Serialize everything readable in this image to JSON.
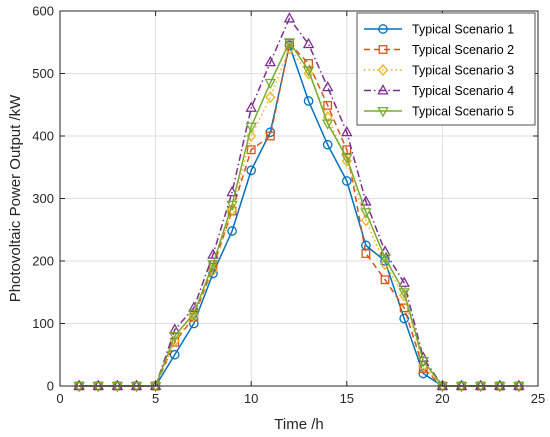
{
  "chart_data": {
    "type": "line",
    "title": "",
    "xlabel": "Time /h",
    "ylabel": "Photovoltaic Power Output /kW",
    "xlim": [
      0,
      25
    ],
    "ylim": [
      0,
      600
    ],
    "xticks": [
      0,
      5,
      10,
      15,
      20,
      25
    ],
    "yticks": [
      0,
      100,
      200,
      300,
      400,
      500,
      600
    ],
    "grid": true,
    "legend_position": "top-right",
    "x": [
      1,
      2,
      3,
      4,
      5,
      6,
      7,
      8,
      9,
      10,
      11,
      12,
      13,
      14,
      15,
      16,
      17,
      18,
      19,
      20,
      21,
      22,
      23,
      24
    ],
    "series": [
      {
        "name": "Typical Scenario 1",
        "color": "#0072BD",
        "marker": "circle",
        "dash": "solid",
        "values": [
          0,
          0,
          0,
          0,
          0,
          50,
          100,
          180,
          248,
          345,
          406,
          545,
          456,
          386,
          328,
          225,
          200,
          108,
          20,
          0,
          0,
          0,
          0,
          0
        ]
      },
      {
        "name": "Typical Scenario 2",
        "color": "#D95319",
        "marker": "square",
        "dash": "dashed",
        "values": [
          0,
          0,
          0,
          0,
          0,
          70,
          110,
          190,
          280,
          378,
          400,
          548,
          516,
          449,
          378,
          212,
          170,
          125,
          28,
          0,
          0,
          0,
          0,
          0
        ]
      },
      {
        "name": "Typical Scenario 3",
        "color": "#EDB120",
        "marker": "diamond",
        "dash": "dotted",
        "values": [
          0,
          0,
          0,
          0,
          0,
          72,
          112,
          185,
          282,
          400,
          462,
          540,
          500,
          430,
          360,
          265,
          195,
          145,
          32,
          0,
          0,
          0,
          0,
          0
        ]
      },
      {
        "name": "Typical Scenario 4",
        "color": "#7E2F8E",
        "marker": "triangle-up",
        "dash": "dashdot",
        "values": [
          0,
          0,
          0,
          0,
          0,
          90,
          125,
          210,
          310,
          445,
          518,
          588,
          547,
          478,
          406,
          295,
          215,
          165,
          45,
          0,
          0,
          0,
          0,
          0
        ]
      },
      {
        "name": "Typical Scenario 5",
        "color": "#77AC30",
        "marker": "triangle-down",
        "dash": "solid",
        "values": [
          0,
          0,
          0,
          0,
          0,
          80,
          116,
          195,
          290,
          415,
          485,
          550,
          505,
          420,
          365,
          278,
          205,
          150,
          40,
          0,
          0,
          0,
          0,
          0
        ]
      }
    ]
  }
}
